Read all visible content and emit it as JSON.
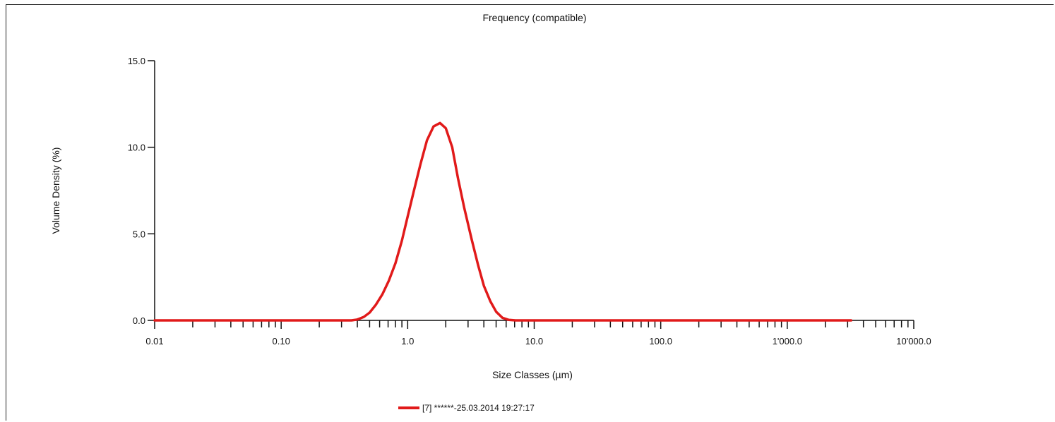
{
  "chart_data": {
    "type": "line",
    "title": "Frequency (compatible)",
    "xlabel": "Size Classes (µm)",
    "ylabel": "Volume Density (%)",
    "x_scale": "log",
    "xlim": [
      0.01,
      10000
    ],
    "ylim": [
      0,
      15
    ],
    "x_tick_labels": [
      "0.01",
      "0.10",
      "1.0",
      "10.0",
      "100.0",
      "1'000.0",
      "10'000.0"
    ],
    "x_tick_values": [
      0.01,
      0.1,
      1,
      10,
      100,
      1000,
      10000
    ],
    "y_tick_labels": [
      "0.0",
      "5.0",
      "10.0",
      "15.0"
    ],
    "y_tick_values": [
      0,
      5,
      10,
      15
    ],
    "grid": false,
    "legend_position": "bottom-center",
    "line_color": "#e11a1a",
    "series": [
      {
        "name": "[7] ******-25.03.2014 19:27:17",
        "x": [
          0.01,
          0.1,
          0.36,
          0.4,
          0.45,
          0.5,
          0.56,
          0.63,
          0.71,
          0.8,
          0.9,
          1.0,
          1.12,
          1.26,
          1.42,
          1.6,
          1.8,
          2.0,
          2.25,
          2.5,
          2.8,
          3.2,
          3.6,
          4.0,
          4.5,
          5.0,
          5.6,
          6.3,
          7.1,
          8.0,
          9.0,
          10.0,
          100.0,
          1000.0,
          3200.0
        ],
        "y": [
          0.0,
          0.0,
          0.0,
          0.05,
          0.2,
          0.45,
          0.9,
          1.5,
          2.3,
          3.3,
          4.6,
          6.0,
          7.5,
          9.0,
          10.4,
          11.2,
          11.4,
          11.1,
          10.0,
          8.2,
          6.5,
          4.7,
          3.2,
          2.0,
          1.1,
          0.5,
          0.15,
          0.03,
          0.0,
          0.0,
          0.0,
          0.0,
          0.0,
          0.0,
          0.0
        ]
      }
    ]
  }
}
